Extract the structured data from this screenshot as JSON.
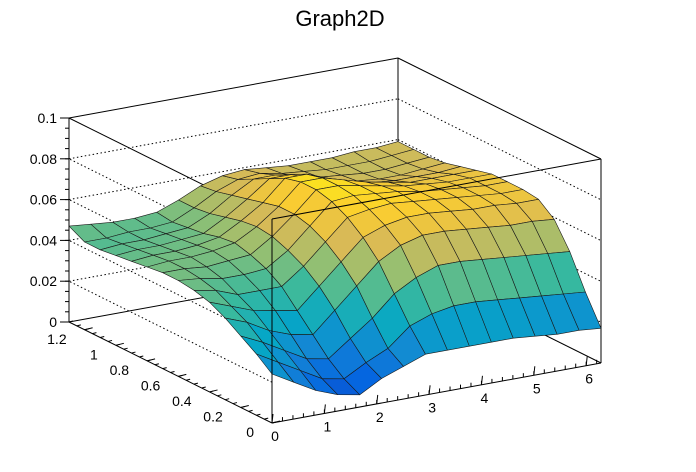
{
  "chart_data": {
    "type": "surface",
    "title": "Graph2D",
    "xlabel": "",
    "ylabel": "",
    "zlabel": "",
    "xlim": [
      0,
      6.283
    ],
    "ylim": [
      0,
      1.3
    ],
    "zlim": [
      0,
      0.1
    ],
    "x_ticks": [
      "0",
      "1",
      "2",
      "3",
      "4",
      "5",
      "6"
    ],
    "y_ticks": [
      "0",
      "0.2",
      "0.4",
      "0.6",
      "0.8",
      "1",
      "1.2"
    ],
    "z_ticks": [
      "0",
      "0.02",
      "0.04",
      "0.06",
      "0.08",
      "0.1"
    ],
    "grid": true,
    "colormap": "parula",
    "colormap_stops": [
      "#352a87",
      "#0363e1",
      "#1485d4",
      "#06a7c6",
      "#38b99e",
      "#92bf73",
      "#d9ba56",
      "#fcce2e",
      "#f9fb0e"
    ],
    "grid_x": [
      0.0,
      0.419,
      0.838,
      1.257,
      1.676,
      2.094,
      2.513,
      2.932,
      3.351,
      3.77,
      4.189,
      4.608,
      5.027,
      5.445,
      5.864,
      6.283
    ],
    "grid_y": [
      0.0,
      0.1,
      0.2,
      0.3,
      0.4,
      0.5,
      0.6,
      0.7,
      0.8,
      0.9,
      1.0,
      1.1,
      1.2,
      1.3
    ],
    "z": [
      [
        0.024,
        0.018,
        0.012,
        0.008,
        0.006,
        0.012,
        0.016,
        0.02,
        0.02,
        0.02,
        0.02,
        0.02,
        0.019,
        0.018,
        0.018,
        0.017
      ],
      [
        0.03,
        0.024,
        0.018,
        0.012,
        0.01,
        0.016,
        0.021,
        0.03,
        0.034,
        0.036,
        0.036,
        0.035,
        0.034,
        0.033,
        0.032,
        0.031
      ],
      [
        0.035,
        0.03,
        0.024,
        0.018,
        0.016,
        0.024,
        0.032,
        0.042,
        0.048,
        0.052,
        0.052,
        0.051,
        0.05,
        0.049,
        0.048,
        0.047
      ],
      [
        0.04,
        0.036,
        0.03,
        0.026,
        0.024,
        0.034,
        0.044,
        0.054,
        0.06,
        0.063,
        0.063,
        0.062,
        0.061,
        0.06,
        0.06,
        0.059
      ],
      [
        0.044,
        0.04,
        0.036,
        0.034,
        0.032,
        0.042,
        0.052,
        0.062,
        0.066,
        0.068,
        0.068,
        0.067,
        0.066,
        0.066,
        0.065,
        0.065
      ],
      [
        0.046,
        0.044,
        0.04,
        0.04,
        0.04,
        0.048,
        0.058,
        0.068,
        0.07,
        0.071,
        0.07,
        0.069,
        0.068,
        0.067,
        0.066,
        0.066
      ],
      [
        0.047,
        0.046,
        0.044,
        0.044,
        0.045,
        0.052,
        0.062,
        0.072,
        0.073,
        0.072,
        0.071,
        0.069,
        0.068,
        0.067,
        0.066,
        0.066
      ],
      [
        0.047,
        0.047,
        0.046,
        0.047,
        0.048,
        0.055,
        0.064,
        0.074,
        0.074,
        0.072,
        0.07,
        0.068,
        0.067,
        0.066,
        0.066,
        0.066
      ],
      [
        0.046,
        0.047,
        0.047,
        0.048,
        0.05,
        0.056,
        0.064,
        0.074,
        0.074,
        0.071,
        0.068,
        0.066,
        0.064,
        0.064,
        0.064,
        0.064
      ],
      [
        0.045,
        0.046,
        0.046,
        0.047,
        0.049,
        0.055,
        0.062,
        0.072,
        0.072,
        0.068,
        0.064,
        0.062,
        0.061,
        0.061,
        0.061,
        0.062
      ],
      [
        0.044,
        0.045,
        0.045,
        0.046,
        0.047,
        0.053,
        0.06,
        0.068,
        0.068,
        0.064,
        0.061,
        0.059,
        0.058,
        0.058,
        0.059,
        0.06
      ],
      [
        0.043,
        0.044,
        0.044,
        0.045,
        0.046,
        0.051,
        0.058,
        0.064,
        0.064,
        0.061,
        0.059,
        0.058,
        0.057,
        0.057,
        0.058,
        0.059
      ],
      [
        0.043,
        0.043,
        0.044,
        0.044,
        0.045,
        0.05,
        0.056,
        0.06,
        0.061,
        0.059,
        0.058,
        0.057,
        0.057,
        0.057,
        0.058,
        0.059
      ],
      [
        0.047,
        0.046,
        0.045,
        0.045,
        0.046,
        0.05,
        0.055,
        0.058,
        0.059,
        0.058,
        0.057,
        0.057,
        0.057,
        0.058,
        0.058,
        0.059
      ]
    ]
  }
}
